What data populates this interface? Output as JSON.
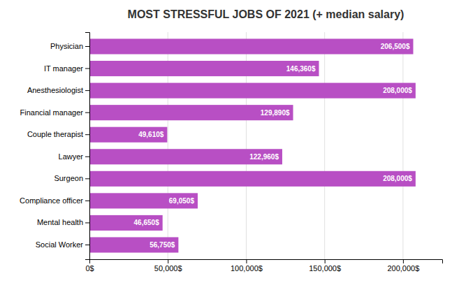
{
  "chart_data": {
    "type": "bar",
    "orientation": "horizontal",
    "title": "MOST STRESSFUL JOBS OF 2021 (+ median salary)",
    "categories": [
      "Physician",
      "IT manager",
      "Anesthesiologist",
      "Financial manager",
      "Couple therapist",
      "Lawyer",
      "Surgeon",
      "Compliance officer",
      "Mental health",
      "Social Worker"
    ],
    "values": [
      206500,
      146360,
      208000,
      129890,
      49610,
      122960,
      208000,
      69050,
      46650,
      56750
    ],
    "value_labels": [
      "206,500$",
      "146,360$",
      "208,000$",
      "129,890$",
      "49,610$",
      "122,960$",
      "208,000$",
      "69,050$",
      "46,650$",
      "56,750$"
    ],
    "data_labels": true,
    "color": "#b84fc4",
    "xlim": [
      0,
      225000
    ],
    "xticks": [
      {
        "value": 0,
        "label": "0$"
      },
      {
        "value": 50000,
        "label": "50,000$"
      },
      {
        "value": 100000,
        "label": "100,000$"
      },
      {
        "value": 150000,
        "label": "150,000$"
      },
      {
        "value": 200000,
        "label": "200,000$"
      }
    ],
    "grid": true
  }
}
